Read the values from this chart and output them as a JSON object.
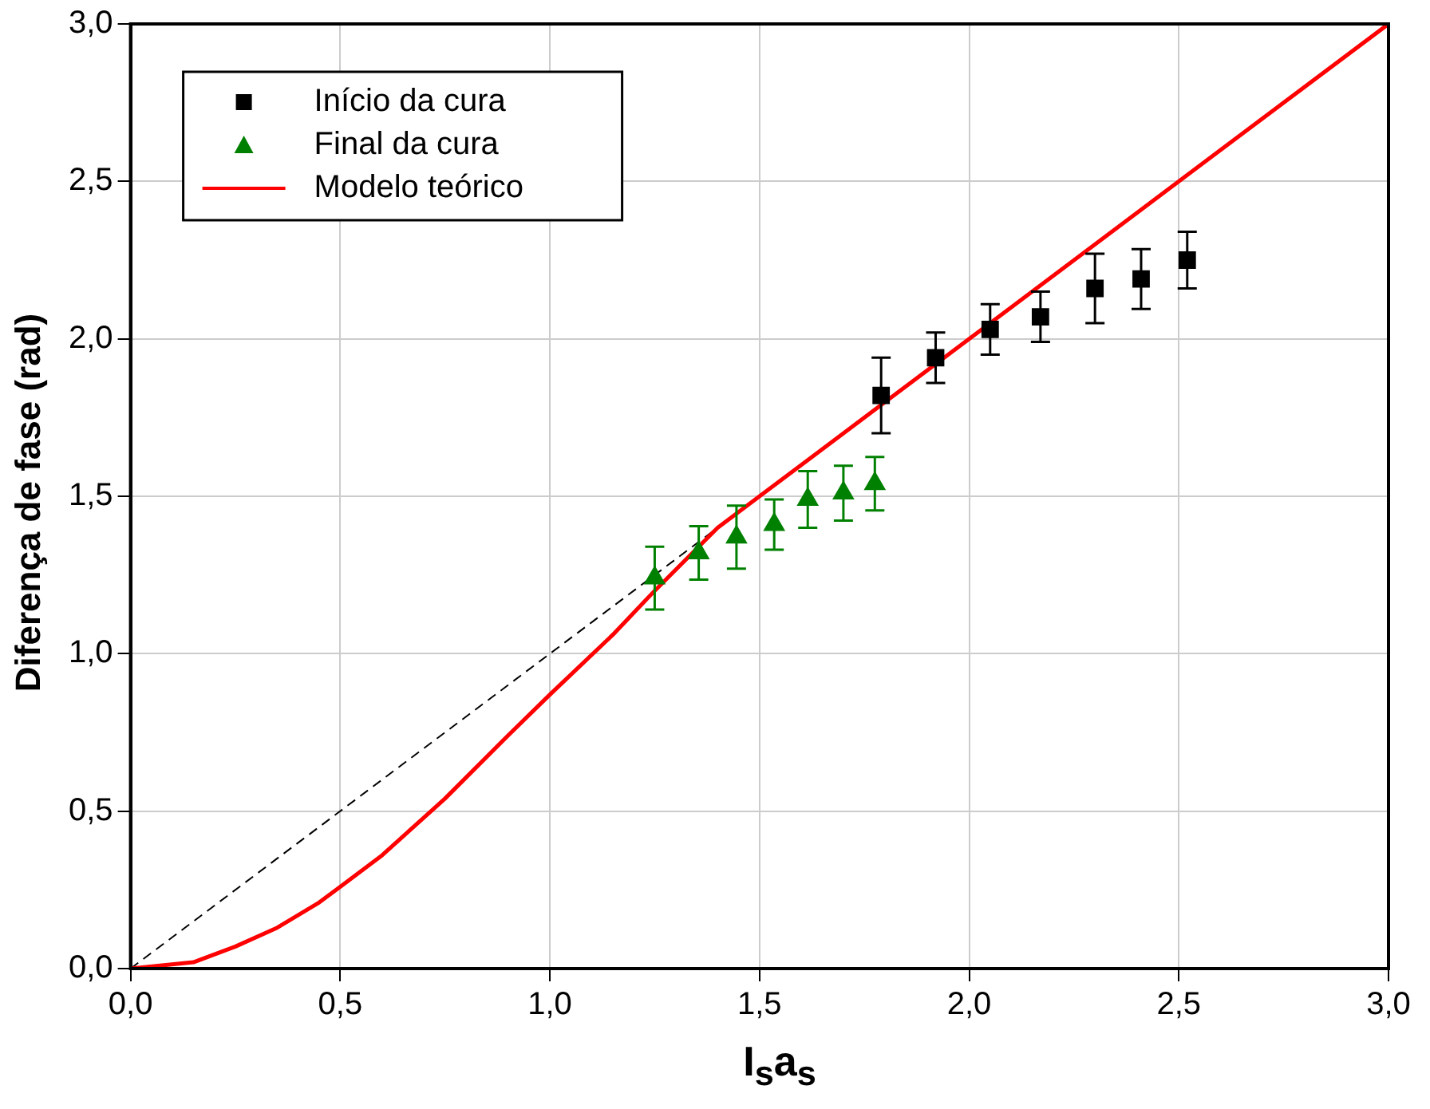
{
  "chart_data": {
    "type": "scatter",
    "xlabel": "I$_{s}$a$_{s}$",
    "ylabel": "Diferença de fase (rad)",
    "xlim": [
      0,
      3
    ],
    "ylim": [
      0,
      3
    ],
    "xticks": [
      {
        "value": 0,
        "label": "0,0"
      },
      {
        "value": 0.5,
        "label": "0,5"
      },
      {
        "value": 1,
        "label": "1,0"
      },
      {
        "value": 1.5,
        "label": "1,5"
      },
      {
        "value": 2,
        "label": "2,0"
      },
      {
        "value": 2.5,
        "label": "2,5"
      },
      {
        "value": 3,
        "label": "3,0"
      }
    ],
    "yticks": [
      {
        "value": 0,
        "label": "0,0"
      },
      {
        "value": 0.5,
        "label": "0,5"
      },
      {
        "value": 1,
        "label": "1,0"
      },
      {
        "value": 1.5,
        "label": "1,5"
      },
      {
        "value": 2,
        "label": "2,0"
      },
      {
        "value": 2.5,
        "label": "2,5"
      },
      {
        "value": 3,
        "label": "3,0"
      }
    ],
    "grid": true,
    "legend": "top left",
    "series": [
      {
        "name": "Início da cura",
        "marker": "square",
        "color": "#000000",
        "x": [
          1.79,
          1.92,
          2.05,
          2.17,
          2.3,
          2.41,
          2.52
        ],
        "values": [
          1.82,
          1.94,
          2.03,
          2.07,
          2.16,
          2.19,
          2.25
        ],
        "errors": [
          0.12,
          0.08,
          0.08,
          0.08,
          0.11,
          0.095,
          0.09
        ]
      },
      {
        "name": "Final da cura",
        "marker": "triangle",
        "color": "#008000",
        "x": [
          1.25,
          1.355,
          1.445,
          1.535,
          1.615,
          1.7,
          1.775
        ],
        "values": [
          1.24,
          1.32,
          1.37,
          1.41,
          1.49,
          1.51,
          1.54
        ],
        "errors": [
          0.1,
          0.085,
          0.1,
          0.08,
          0.09,
          0.087,
          0.085
        ]
      },
      {
        "name": "Modelo teórico",
        "type": "line",
        "marker": "none",
        "line_style": "solid",
        "color": "#ff0000",
        "x": [
          0,
          0.15,
          0.25,
          0.35,
          0.45,
          0.5,
          0.6,
          0.75,
          0.9,
          1.0,
          1.15,
          1.25,
          1.4,
          1.5,
          2.0,
          2.5,
          3.0
        ],
        "values": [
          0,
          0.02,
          0.07,
          0.13,
          0.21,
          0.26,
          0.36,
          0.54,
          0.74,
          0.87,
          1.06,
          1.2,
          1.4,
          1.5,
          2.0,
          2.5,
          3.0
        ]
      },
      {
        "type": "line",
        "marker": "none",
        "line_style": "dashed",
        "color": "#000000",
        "x": [
          0,
          3
        ],
        "values": [
          0,
          3
        ]
      }
    ]
  }
}
